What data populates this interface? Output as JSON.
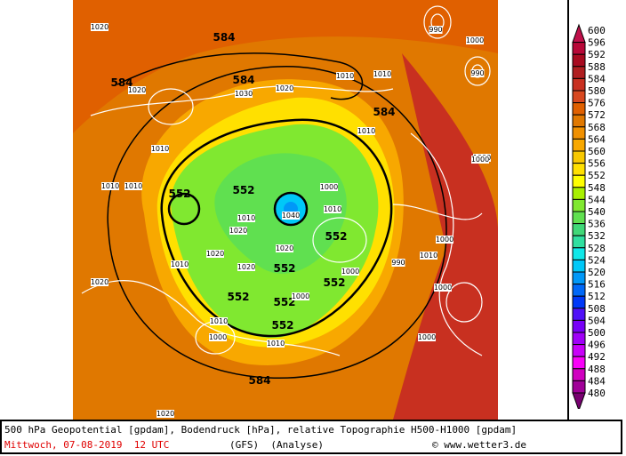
{
  "footer": {
    "title": "500 hPa Geopotential [gpdam], Bodendruck [hPa], relative Topographie H500-H1000 [gpdam]",
    "date": "Mittwoch, 07-08-2019  12 UTC",
    "model": "(GFS)  (Analyse)",
    "credit": "© www.wetter3.de"
  },
  "legend": {
    "levels": [
      "600",
      "596",
      "592",
      "588",
      "584",
      "580",
      "576",
      "572",
      "568",
      "564",
      "560",
      "556",
      "552",
      "548",
      "544",
      "540",
      "536",
      "532",
      "528",
      "524",
      "520",
      "516",
      "512",
      "508",
      "504",
      "500",
      "496",
      "492",
      "488",
      "484",
      "480"
    ],
    "colors": [
      "#c0104a",
      "#b80838",
      "#a80a20",
      "#b01e20",
      "#c83020",
      "#d84820",
      "#e06000",
      "#e07800",
      "#f09000",
      "#f8a800",
      "#f8c800",
      "#ffe000",
      "#ffff00",
      "#a8f000",
      "#80e830",
      "#60e050",
      "#40d878",
      "#30e0a0",
      "#10e8e8",
      "#00c8f8",
      "#0098f8",
      "#0068f8",
      "#0038f8",
      "#5010f8",
      "#7800f8",
      "#a000f8",
      "#c800f8",
      "#f800f8",
      "#d000c0",
      "#a00098",
      "#780070"
    ]
  },
  "map": {
    "geopotential_labels": [
      "552",
      "552",
      "552",
      "552",
      "552",
      "552",
      "552",
      "552",
      "584",
      "584",
      "584",
      "584",
      "584"
    ],
    "isobar_labels": [
      "1020",
      "1020",
      "1030",
      "1020",
      "1010",
      "1010",
      "1010",
      "1010",
      "1010",
      "1010",
      "1000",
      "1000",
      "990",
      "990",
      "1010",
      "1000",
      "1010",
      "1040",
      "1010",
      "1020",
      "1020",
      "1020",
      "1020",
      "1000",
      "1010",
      "990",
      "1000",
      "1000",
      "1000",
      "1010",
      "1000",
      "1000",
      "1020",
      "1000",
      "1010",
      "1020"
    ]
  }
}
